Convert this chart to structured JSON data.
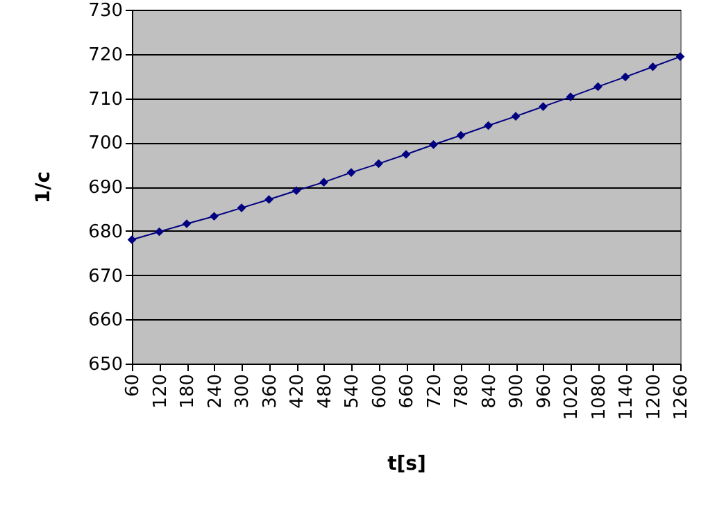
{
  "chart_data": {
    "type": "line",
    "xlabel": "t[s]",
    "ylabel": "1/c",
    "categories": [
      "60",
      "120",
      "180",
      "240",
      "300",
      "360",
      "420",
      "480",
      "540",
      "600",
      "660",
      "720",
      "780",
      "840",
      "900",
      "960",
      "1020",
      "1080",
      "1140",
      "1200",
      "1260"
    ],
    "series": [
      {
        "color": "#000080",
        "values": [
          678.0,
          679.8,
          681.6,
          683.3,
          685.2,
          687.1,
          689.1,
          691.0,
          693.2,
          695.2,
          697.3,
          699.5,
          701.6,
          703.8,
          705.9,
          708.1,
          710.3,
          712.6,
          714.8,
          717.1,
          719.4
        ]
      }
    ],
    "ylim": [
      650,
      730
    ],
    "yticks": [
      650,
      660,
      670,
      680,
      690,
      700,
      710,
      720,
      730
    ],
    "grid": "y",
    "marker": "diamond"
  }
}
